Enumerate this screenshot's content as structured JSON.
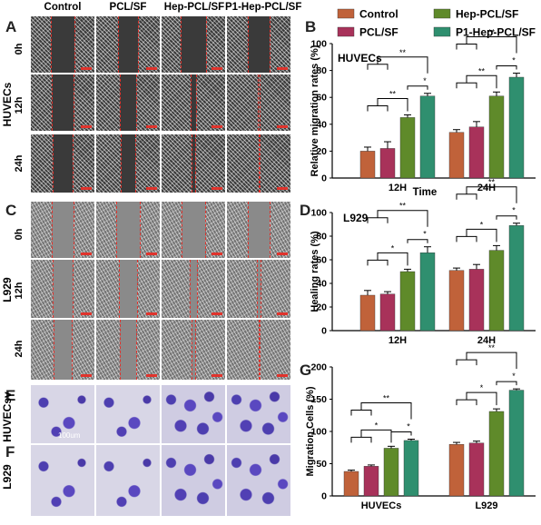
{
  "panels": {
    "A": "A",
    "B": "B",
    "C": "C",
    "D": "D",
    "E": "E",
    "F": "F",
    "G": "G"
  },
  "columns": [
    "Control",
    "PCL/SF",
    "Hep-PCL/SF",
    "P1-Hep-PCL/SF"
  ],
  "groups": {
    "huvec": "HUVECs",
    "l929": "L929",
    "huvecsv": "HUVECsv",
    "l929b": "L929"
  },
  "timepoints": [
    "0h",
    "12h",
    "24h"
  ],
  "stain_scale": "100um",
  "colors": {
    "Control": "#c0623a",
    "PCL/SF": "#a8325a",
    "Hep-PCL/SF": "#5f8a2a",
    "P1-Hep-PCL/SF": "#2f8f6f",
    "wound_edge": "#e0332c"
  },
  "legend": [
    "Control",
    "PCL/SF",
    "Hep-PCL/SF",
    "P1-Hep-PCL/SF"
  ],
  "chart_data": [
    {
      "panel": "B",
      "type": "bar",
      "inner_label": "HUVECs",
      "categories": [
        "12H",
        "24H"
      ],
      "xlabel": "Time",
      "ylabel": "Relative migration rates (%)",
      "ylim": [
        0,
        100
      ],
      "yticks": [
        0,
        20,
        40,
        60,
        80,
        100
      ],
      "series": [
        {
          "name": "Control",
          "values": [
            20,
            34
          ],
          "errors": [
            3,
            2
          ]
        },
        {
          "name": "PCL/SF",
          "values": [
            22,
            38
          ],
          "errors": [
            5,
            4
          ]
        },
        {
          "name": "Hep-PCL/SF",
          "values": [
            45,
            61
          ],
          "errors": [
            2,
            3
          ]
        },
        {
          "name": "P1-Hep-PCL/SF",
          "values": [
            61,
            75
          ],
          "errors": [
            2,
            3
          ]
        }
      ],
      "significance": [
        {
          "cat": 0,
          "label": "**"
        },
        {
          "cat": 0,
          "label": "**"
        },
        {
          "cat": 0,
          "label": "*"
        },
        {
          "cat": 1,
          "label": "**"
        },
        {
          "cat": 1,
          "label": "**"
        },
        {
          "cat": 1,
          "label": "*"
        }
      ]
    },
    {
      "panel": "D",
      "type": "bar",
      "inner_label": "L929",
      "categories": [
        "12H",
        "24H"
      ],
      "xlabel": "",
      "ylabel": "Healing rates (%)",
      "ylim": [
        0,
        100
      ],
      "yticks": [
        0,
        20,
        40,
        60,
        80,
        100
      ],
      "series": [
        {
          "name": "Control",
          "values": [
            30,
            51
          ],
          "errors": [
            4,
            2
          ]
        },
        {
          "name": "PCL/SF",
          "values": [
            31,
            52
          ],
          "errors": [
            2,
            4
          ]
        },
        {
          "name": "Hep-PCL/SF",
          "values": [
            50,
            68
          ],
          "errors": [
            2,
            4
          ]
        },
        {
          "name": "P1-Hep-PCL/SF",
          "values": [
            66,
            89
          ],
          "errors": [
            5,
            2
          ]
        }
      ],
      "significance": [
        {
          "cat": 0,
          "label": "**"
        },
        {
          "cat": 0,
          "label": "*"
        },
        {
          "cat": 0,
          "label": "*"
        },
        {
          "cat": 1,
          "label": "**"
        },
        {
          "cat": 1,
          "label": "*"
        },
        {
          "cat": 1,
          "label": "*"
        }
      ]
    },
    {
      "panel": "G",
      "type": "bar",
      "inner_label": "",
      "categories": [
        "HUVECs",
        "L929"
      ],
      "xlabel": "",
      "ylabel": "Migration Cells (%)",
      "ylim": [
        0,
        200
      ],
      "yticks": [
        0,
        50,
        100,
        150,
        200
      ],
      "series": [
        {
          "name": "Control",
          "values": [
            38,
            80
          ],
          "errors": [
            2,
            3
          ]
        },
        {
          "name": "PCL/SF",
          "values": [
            46,
            82
          ],
          "errors": [
            2,
            3
          ]
        },
        {
          "name": "Hep-PCL/SF",
          "values": [
            74,
            131
          ],
          "errors": [
            3,
            4
          ]
        },
        {
          "name": "P1-Hep-PCL/SF",
          "values": [
            86,
            164
          ],
          "errors": [
            2,
            2
          ]
        }
      ],
      "significance": [
        {
          "cat": 0,
          "label": "**"
        },
        {
          "cat": 0,
          "label": "*"
        },
        {
          "cat": 0,
          "label": "*"
        },
        {
          "cat": 1,
          "label": "**"
        },
        {
          "cat": 1,
          "label": "*"
        },
        {
          "cat": 1,
          "label": "*"
        }
      ]
    }
  ]
}
